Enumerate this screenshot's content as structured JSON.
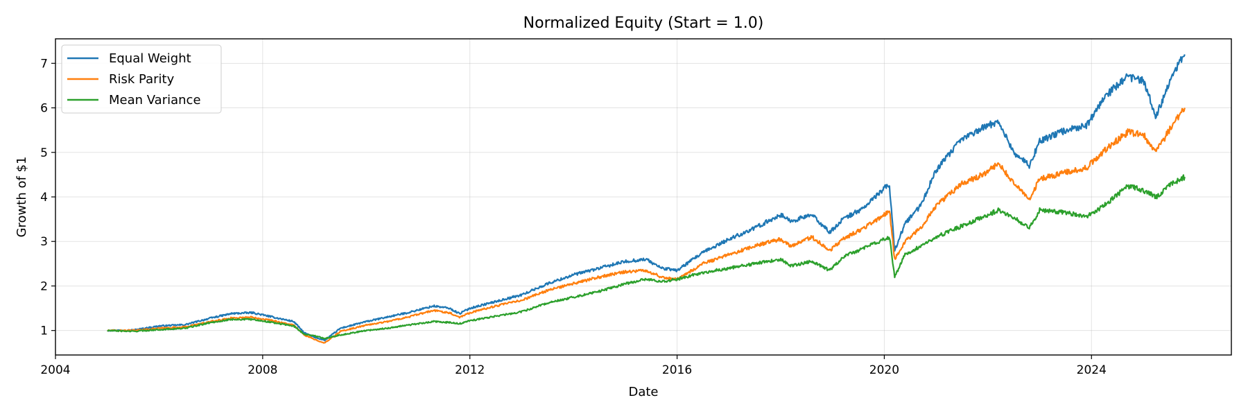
{
  "chart_data": {
    "type": "line",
    "title": "Normalized Equity (Start = 1.0)",
    "xlabel": "Date",
    "ylabel": "Growth of $1",
    "xlim": [
      2004.0,
      2026.7
    ],
    "ylim": [
      0.45,
      7.55
    ],
    "xticks": [
      2004,
      2008,
      2012,
      2016,
      2020,
      2024
    ],
    "xtick_labels": [
      "2004",
      "2008",
      "2012",
      "2016",
      "2020",
      "2024"
    ],
    "yticks": [
      1,
      2,
      3,
      4,
      5,
      6,
      7
    ],
    "ytick_labels": [
      "1",
      "2",
      "3",
      "4",
      "5",
      "6",
      "7"
    ],
    "grid": true,
    "legend_position": "top-left",
    "series": [
      {
        "name": "Equal Weight",
        "color": "#1f77b4",
        "points": [
          [
            2005.0,
            1.0
          ],
          [
            2005.5,
            1.01
          ],
          [
            2006.0,
            1.1
          ],
          [
            2006.5,
            1.13
          ],
          [
            2007.0,
            1.28
          ],
          [
            2007.4,
            1.38
          ],
          [
            2007.8,
            1.4
          ],
          [
            2008.2,
            1.3
          ],
          [
            2008.6,
            1.2
          ],
          [
            2008.8,
            0.95
          ],
          [
            2009.0,
            0.85
          ],
          [
            2009.2,
            0.78
          ],
          [
            2009.5,
            1.05
          ],
          [
            2010.0,
            1.2
          ],
          [
            2010.4,
            1.3
          ],
          [
            2010.8,
            1.4
          ],
          [
            2011.3,
            1.55
          ],
          [
            2011.6,
            1.5
          ],
          [
            2011.8,
            1.38
          ],
          [
            2012.0,
            1.5
          ],
          [
            2012.5,
            1.65
          ],
          [
            2013.0,
            1.8
          ],
          [
            2013.5,
            2.05
          ],
          [
            2014.0,
            2.25
          ],
          [
            2014.5,
            2.4
          ],
          [
            2015.0,
            2.55
          ],
          [
            2015.4,
            2.6
          ],
          [
            2015.7,
            2.4
          ],
          [
            2016.0,
            2.35
          ],
          [
            2016.5,
            2.75
          ],
          [
            2017.0,
            3.05
          ],
          [
            2017.5,
            3.3
          ],
          [
            2018.0,
            3.6
          ],
          [
            2018.2,
            3.45
          ],
          [
            2018.6,
            3.6
          ],
          [
            2018.95,
            3.2
          ],
          [
            2019.2,
            3.5
          ],
          [
            2019.6,
            3.75
          ],
          [
            2020.0,
            4.2
          ],
          [
            2020.1,
            4.25
          ],
          [
            2020.2,
            2.8
          ],
          [
            2020.4,
            3.4
          ],
          [
            2020.7,
            3.8
          ],
          [
            2021.0,
            4.6
          ],
          [
            2021.5,
            5.3
          ],
          [
            2021.9,
            5.55
          ],
          [
            2022.2,
            5.7
          ],
          [
            2022.5,
            5.0
          ],
          [
            2022.8,
            4.7
          ],
          [
            2023.0,
            5.25
          ],
          [
            2023.5,
            5.5
          ],
          [
            2023.9,
            5.6
          ],
          [
            2024.3,
            6.3
          ],
          [
            2024.7,
            6.7
          ],
          [
            2025.0,
            6.6
          ],
          [
            2025.25,
            5.8
          ],
          [
            2025.5,
            6.6
          ],
          [
            2025.8,
            7.2
          ]
        ]
      },
      {
        "name": "Risk Parity",
        "color": "#ff7f0e",
        "points": [
          [
            2005.0,
            1.0
          ],
          [
            2005.5,
            1.0
          ],
          [
            2006.0,
            1.05
          ],
          [
            2006.5,
            1.08
          ],
          [
            2007.0,
            1.2
          ],
          [
            2007.4,
            1.28
          ],
          [
            2007.8,
            1.3
          ],
          [
            2008.2,
            1.22
          ],
          [
            2008.6,
            1.12
          ],
          [
            2008.8,
            0.9
          ],
          [
            2009.0,
            0.8
          ],
          [
            2009.2,
            0.72
          ],
          [
            2009.5,
            0.98
          ],
          [
            2010.0,
            1.12
          ],
          [
            2010.4,
            1.2
          ],
          [
            2010.8,
            1.3
          ],
          [
            2011.3,
            1.45
          ],
          [
            2011.6,
            1.4
          ],
          [
            2011.8,
            1.3
          ],
          [
            2012.0,
            1.4
          ],
          [
            2012.5,
            1.55
          ],
          [
            2013.0,
            1.68
          ],
          [
            2013.5,
            1.9
          ],
          [
            2014.0,
            2.05
          ],
          [
            2014.5,
            2.2
          ],
          [
            2015.0,
            2.32
          ],
          [
            2015.4,
            2.35
          ],
          [
            2015.7,
            2.2
          ],
          [
            2016.0,
            2.15
          ],
          [
            2016.5,
            2.5
          ],
          [
            2017.0,
            2.7
          ],
          [
            2017.5,
            2.9
          ],
          [
            2018.0,
            3.05
          ],
          [
            2018.2,
            2.9
          ],
          [
            2018.6,
            3.1
          ],
          [
            2018.95,
            2.8
          ],
          [
            2019.2,
            3.05
          ],
          [
            2019.6,
            3.3
          ],
          [
            2020.0,
            3.6
          ],
          [
            2020.1,
            3.7
          ],
          [
            2020.2,
            2.6
          ],
          [
            2020.4,
            3.0
          ],
          [
            2020.7,
            3.3
          ],
          [
            2021.0,
            3.8
          ],
          [
            2021.5,
            4.3
          ],
          [
            2021.9,
            4.5
          ],
          [
            2022.2,
            4.75
          ],
          [
            2022.5,
            4.3
          ],
          [
            2022.8,
            3.95
          ],
          [
            2023.0,
            4.4
          ],
          [
            2023.5,
            4.55
          ],
          [
            2023.9,
            4.65
          ],
          [
            2024.3,
            5.1
          ],
          [
            2024.7,
            5.45
          ],
          [
            2025.0,
            5.4
          ],
          [
            2025.25,
            5.0
          ],
          [
            2025.5,
            5.5
          ],
          [
            2025.8,
            6.0
          ]
        ]
      },
      {
        "name": "Mean Variance",
        "color": "#2ca02c",
        "points": [
          [
            2005.0,
            1.0
          ],
          [
            2005.5,
            0.98
          ],
          [
            2006.0,
            1.02
          ],
          [
            2006.5,
            1.05
          ],
          [
            2007.0,
            1.18
          ],
          [
            2007.4,
            1.25
          ],
          [
            2007.8,
            1.25
          ],
          [
            2008.2,
            1.18
          ],
          [
            2008.6,
            1.1
          ],
          [
            2008.8,
            0.92
          ],
          [
            2009.0,
            0.88
          ],
          [
            2009.2,
            0.82
          ],
          [
            2009.5,
            0.9
          ],
          [
            2010.0,
            1.0
          ],
          [
            2010.4,
            1.05
          ],
          [
            2010.8,
            1.12
          ],
          [
            2011.3,
            1.2
          ],
          [
            2011.6,
            1.18
          ],
          [
            2011.8,
            1.15
          ],
          [
            2012.0,
            1.22
          ],
          [
            2012.5,
            1.32
          ],
          [
            2013.0,
            1.42
          ],
          [
            2013.5,
            1.62
          ],
          [
            2014.0,
            1.75
          ],
          [
            2014.5,
            1.88
          ],
          [
            2015.0,
            2.05
          ],
          [
            2015.4,
            2.15
          ],
          [
            2015.7,
            2.1
          ],
          [
            2016.0,
            2.15
          ],
          [
            2016.5,
            2.3
          ],
          [
            2017.0,
            2.4
          ],
          [
            2017.5,
            2.5
          ],
          [
            2018.0,
            2.6
          ],
          [
            2018.2,
            2.45
          ],
          [
            2018.6,
            2.55
          ],
          [
            2018.95,
            2.35
          ],
          [
            2019.2,
            2.65
          ],
          [
            2019.6,
            2.85
          ],
          [
            2020.0,
            3.05
          ],
          [
            2020.1,
            3.1
          ],
          [
            2020.2,
            2.2
          ],
          [
            2020.4,
            2.7
          ],
          [
            2020.7,
            2.9
          ],
          [
            2021.0,
            3.1
          ],
          [
            2021.5,
            3.35
          ],
          [
            2021.9,
            3.55
          ],
          [
            2022.2,
            3.7
          ],
          [
            2022.5,
            3.55
          ],
          [
            2022.8,
            3.3
          ],
          [
            2023.0,
            3.7
          ],
          [
            2023.5,
            3.65
          ],
          [
            2023.9,
            3.55
          ],
          [
            2024.3,
            3.85
          ],
          [
            2024.7,
            4.25
          ],
          [
            2025.0,
            4.15
          ],
          [
            2025.25,
            4.0
          ],
          [
            2025.5,
            4.25
          ],
          [
            2025.8,
            4.45
          ]
        ]
      }
    ]
  }
}
